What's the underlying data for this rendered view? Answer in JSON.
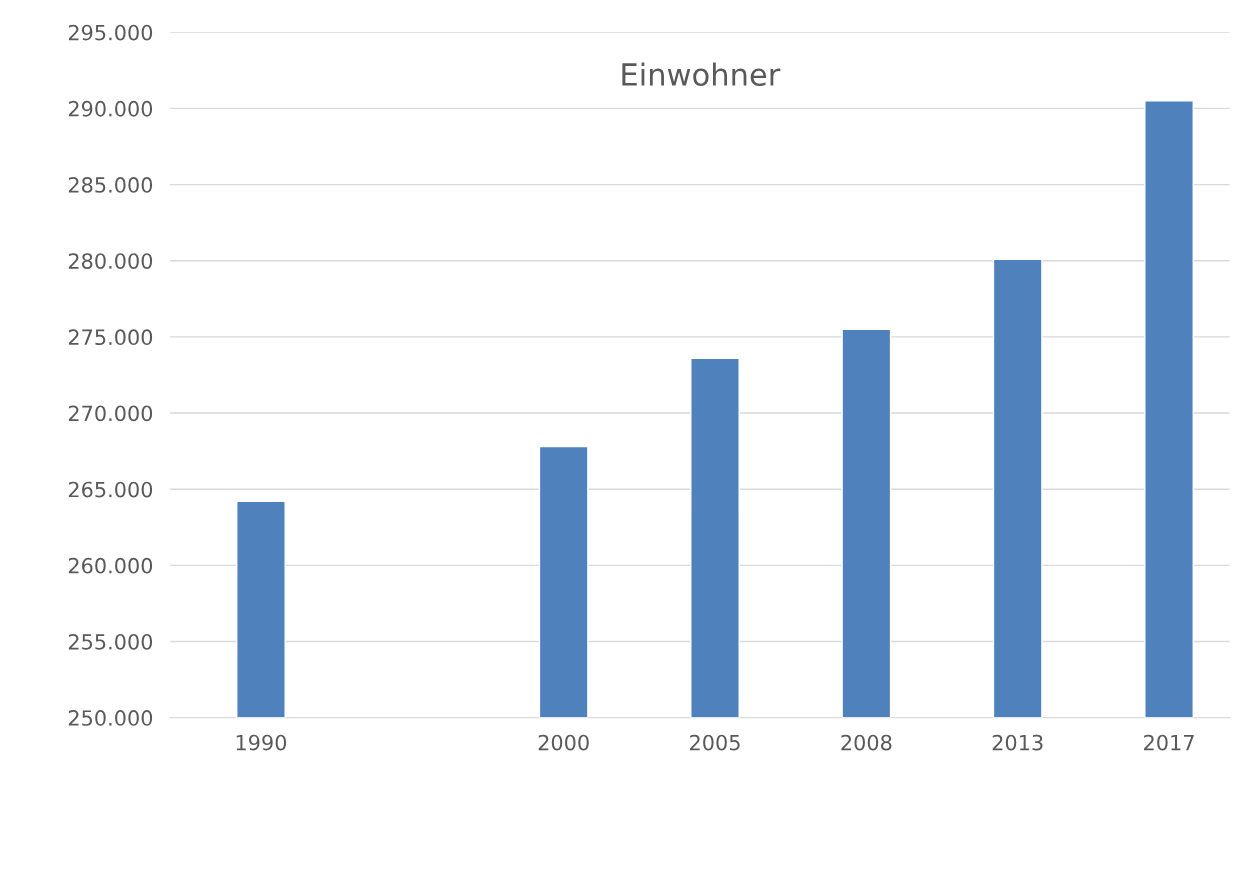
{
  "chart_data": {
    "type": "bar",
    "title": "Einwohner",
    "categories": [
      "1990",
      null,
      "2000",
      "2005",
      "2008",
      "2013",
      "2017"
    ],
    "values": [
      264200,
      null,
      267800,
      273600,
      275500,
      280100,
      290500
    ],
    "color": "#4f81bd",
    "ylim": [
      250000,
      295000
    ],
    "yticks": [
      {
        "value": 250000,
        "label": "250.000"
      },
      {
        "value": 255000,
        "label": "255.000"
      },
      {
        "value": 260000,
        "label": "260.000"
      },
      {
        "value": 265000,
        "label": "265.000"
      },
      {
        "value": 270000,
        "label": "270.000"
      },
      {
        "value": 275000,
        "label": "275.000"
      },
      {
        "value": 280000,
        "label": "280.000"
      },
      {
        "value": 285000,
        "label": "285.000"
      },
      {
        "value": 290000,
        "label": "290.000"
      },
      {
        "value": 295000,
        "label": "295.000"
      }
    ],
    "grid": "y"
  }
}
